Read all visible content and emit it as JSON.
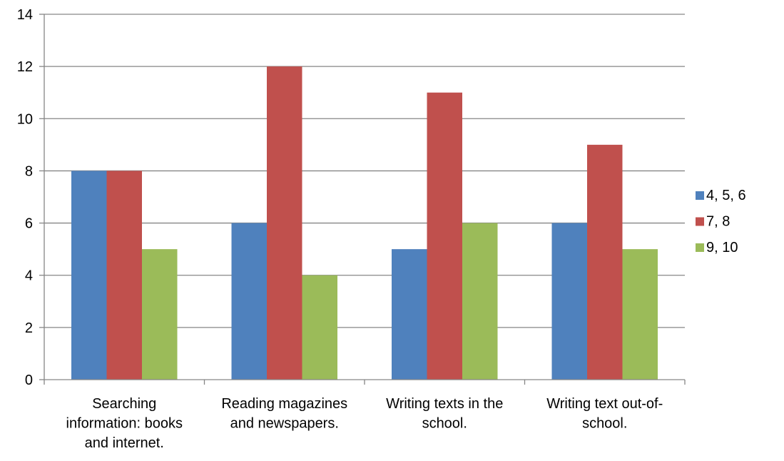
{
  "chart_data": {
    "type": "bar",
    "title": "",
    "xlabel": "",
    "ylabel": "",
    "ylim": [
      0,
      14
    ],
    "yticks": [
      0,
      2,
      4,
      6,
      8,
      10,
      12,
      14
    ],
    "grid": true,
    "legend_position": "right",
    "categories": [
      [
        "Searching",
        "information: books",
        "and internet."
      ],
      [
        "Reading magazines",
        "and newspapers."
      ],
      [
        "Writing texts in the",
        "school."
      ],
      [
        "Writing text out-of-",
        "school."
      ]
    ],
    "series": [
      {
        "name": "4, 5, 6",
        "color": "#4F81BD",
        "values": [
          8,
          6,
          5,
          6
        ]
      },
      {
        "name": "7, 8",
        "color": "#C0504D",
        "values": [
          8,
          12,
          11,
          9
        ]
      },
      {
        "name": "9, 10",
        "color": "#9BBB59",
        "values": [
          5,
          4,
          6,
          5
        ]
      }
    ]
  }
}
